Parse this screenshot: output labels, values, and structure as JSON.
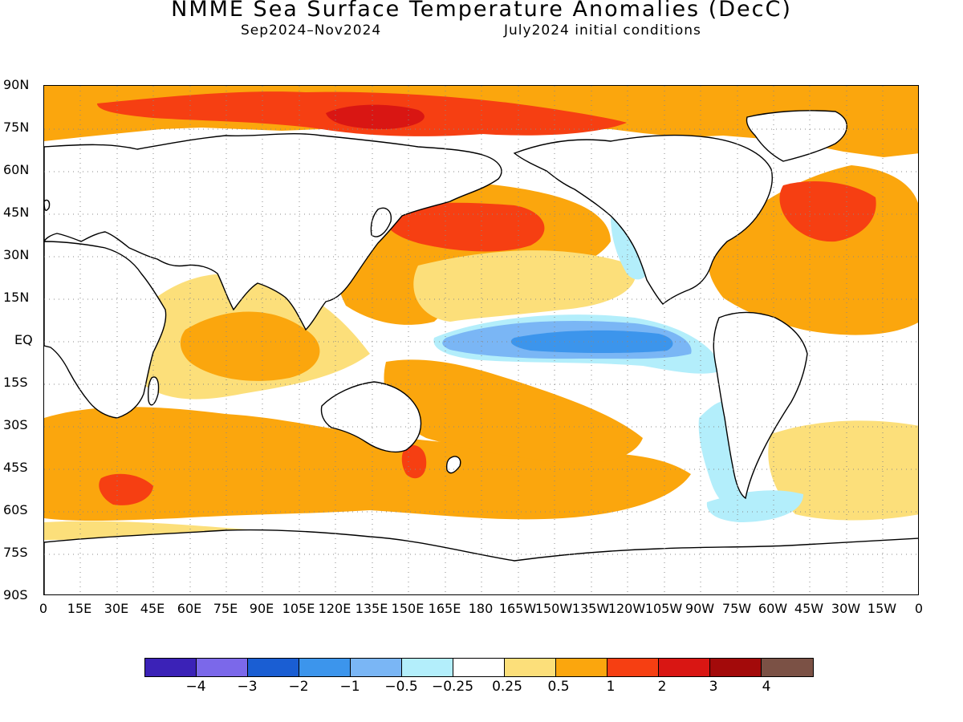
{
  "title": "NMME Sea Surface Temperature Anomalies (DecC)",
  "subtitle_left": "Sep2024–Nov2024",
  "subtitle_right": "July2024 initial conditions",
  "map": {
    "lat_labels": [
      "90N",
      "75N",
      "60N",
      "45N",
      "30N",
      "15N",
      "EQ",
      "15S",
      "30S",
      "45S",
      "60S",
      "75S",
      "90S"
    ],
    "lon_labels": [
      "0",
      "15E",
      "30E",
      "45E",
      "60E",
      "75E",
      "90E",
      "105E",
      "120E",
      "135E",
      "150E",
      "165E",
      "180",
      "165W",
      "150W",
      "135W",
      "120W",
      "105W",
      "90W",
      "75W",
      "60W",
      "45W",
      "30W",
      "15W",
      "0"
    ],
    "anomaly_regions": [
      {
        "name": "arctic-band",
        "level": "0.5-1",
        "color": "#fba60d"
      },
      {
        "name": "arctic-siberian",
        "level": "1-2",
        "color": "#f63f12"
      },
      {
        "name": "arctic-core",
        "level": "2-3",
        "color": "#d91613"
      },
      {
        "name": "enso-cold-tongue",
        "level": "-0.5 to -1",
        "color": "#7ab6f5"
      },
      {
        "name": "enso-core",
        "level": "-1 to -2",
        "color": "#3c95ec"
      },
      {
        "name": "north-pacific-warm",
        "level": "1-2",
        "color": "#f63f12"
      },
      {
        "name": "north-atlantic-warm",
        "level": "1-2",
        "color": "#f63f12"
      },
      {
        "name": "southern-ocean-warm",
        "level": "0.5-1",
        "color": "#fba60d"
      }
    ]
  },
  "colorbar": {
    "colors": [
      "#3b22b7",
      "#7b68ea",
      "#1a5ed3",
      "#3c95ec",
      "#7ab6f5",
      "#b3eefb",
      "#ffffff",
      "#fcdf7a",
      "#fba60d",
      "#f63f12",
      "#d91613",
      "#a30a0a",
      "#7b5145"
    ],
    "labels": [
      "−4",
      "−3",
      "−2",
      "−1",
      "−0.5",
      "−0.25",
      "0.25",
      "0.5",
      "1",
      "2",
      "3",
      "4"
    ]
  }
}
